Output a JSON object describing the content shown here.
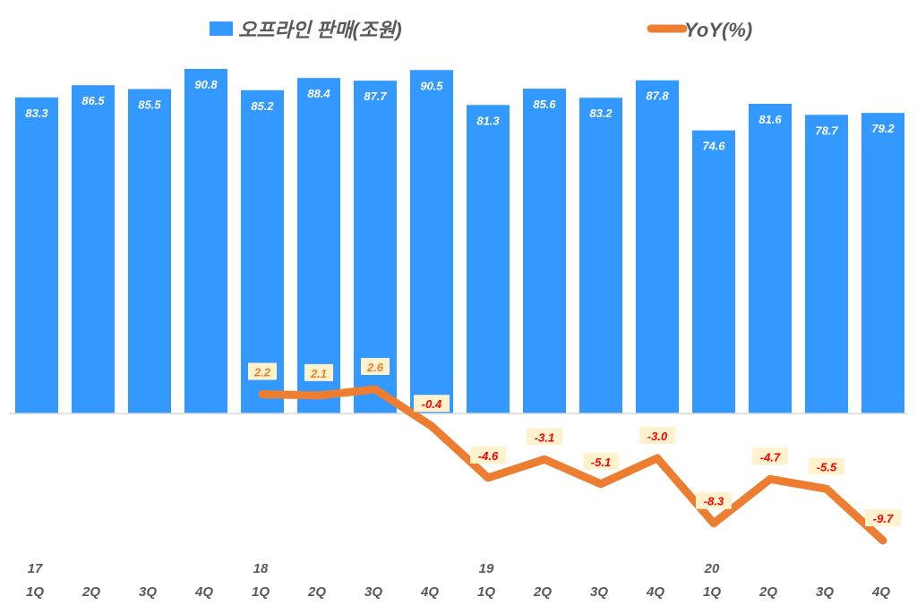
{
  "chart_data": {
    "type": "bar+line",
    "title": "",
    "legend": {
      "placement": "top",
      "entries": [
        {
          "name": "오프라인 판매(조원)",
          "color": "#3399FF",
          "kind": "bar"
        },
        {
          "name": "YoY(%)",
          "color": "#ED7D31",
          "kind": "line"
        }
      ]
    },
    "categories": [
      "1Q",
      "2Q",
      "3Q",
      "4Q",
      "1Q",
      "2Q",
      "3Q",
      "4Q",
      "1Q",
      "2Q",
      "3Q",
      "4Q",
      "1Q",
      "2Q",
      "3Q",
      "4Q"
    ],
    "year_labels": [
      "17",
      "",
      "",
      "",
      "18",
      "",
      "",
      "",
      "19",
      "",
      "",
      "",
      "20",
      "",
      "",
      ""
    ],
    "series": [
      {
        "name": "오프라인 판매(조원)",
        "type": "bar",
        "color": "#3399FF",
        "values": [
          83.3,
          86.5,
          85.5,
          90.8,
          85.2,
          88.4,
          87.7,
          90.5,
          81.3,
          85.6,
          83.2,
          87.8,
          74.6,
          81.6,
          78.7,
          79.2
        ]
      },
      {
        "name": "YoY(%)",
        "type": "line",
        "color": "#ED7D31",
        "values": [
          null,
          null,
          null,
          null,
          2.2,
          2.1,
          2.6,
          -0.4,
          -4.6,
          -3.1,
          -5.1,
          -3.0,
          -8.3,
          -4.7,
          -5.5,
          -9.7
        ],
        "label_box_color": "#FFF2CC",
        "positive_label_color": "#ED7D31",
        "negative_label_color": "#FF0000"
      }
    ],
    "grid": false,
    "secondary_axis": true
  }
}
